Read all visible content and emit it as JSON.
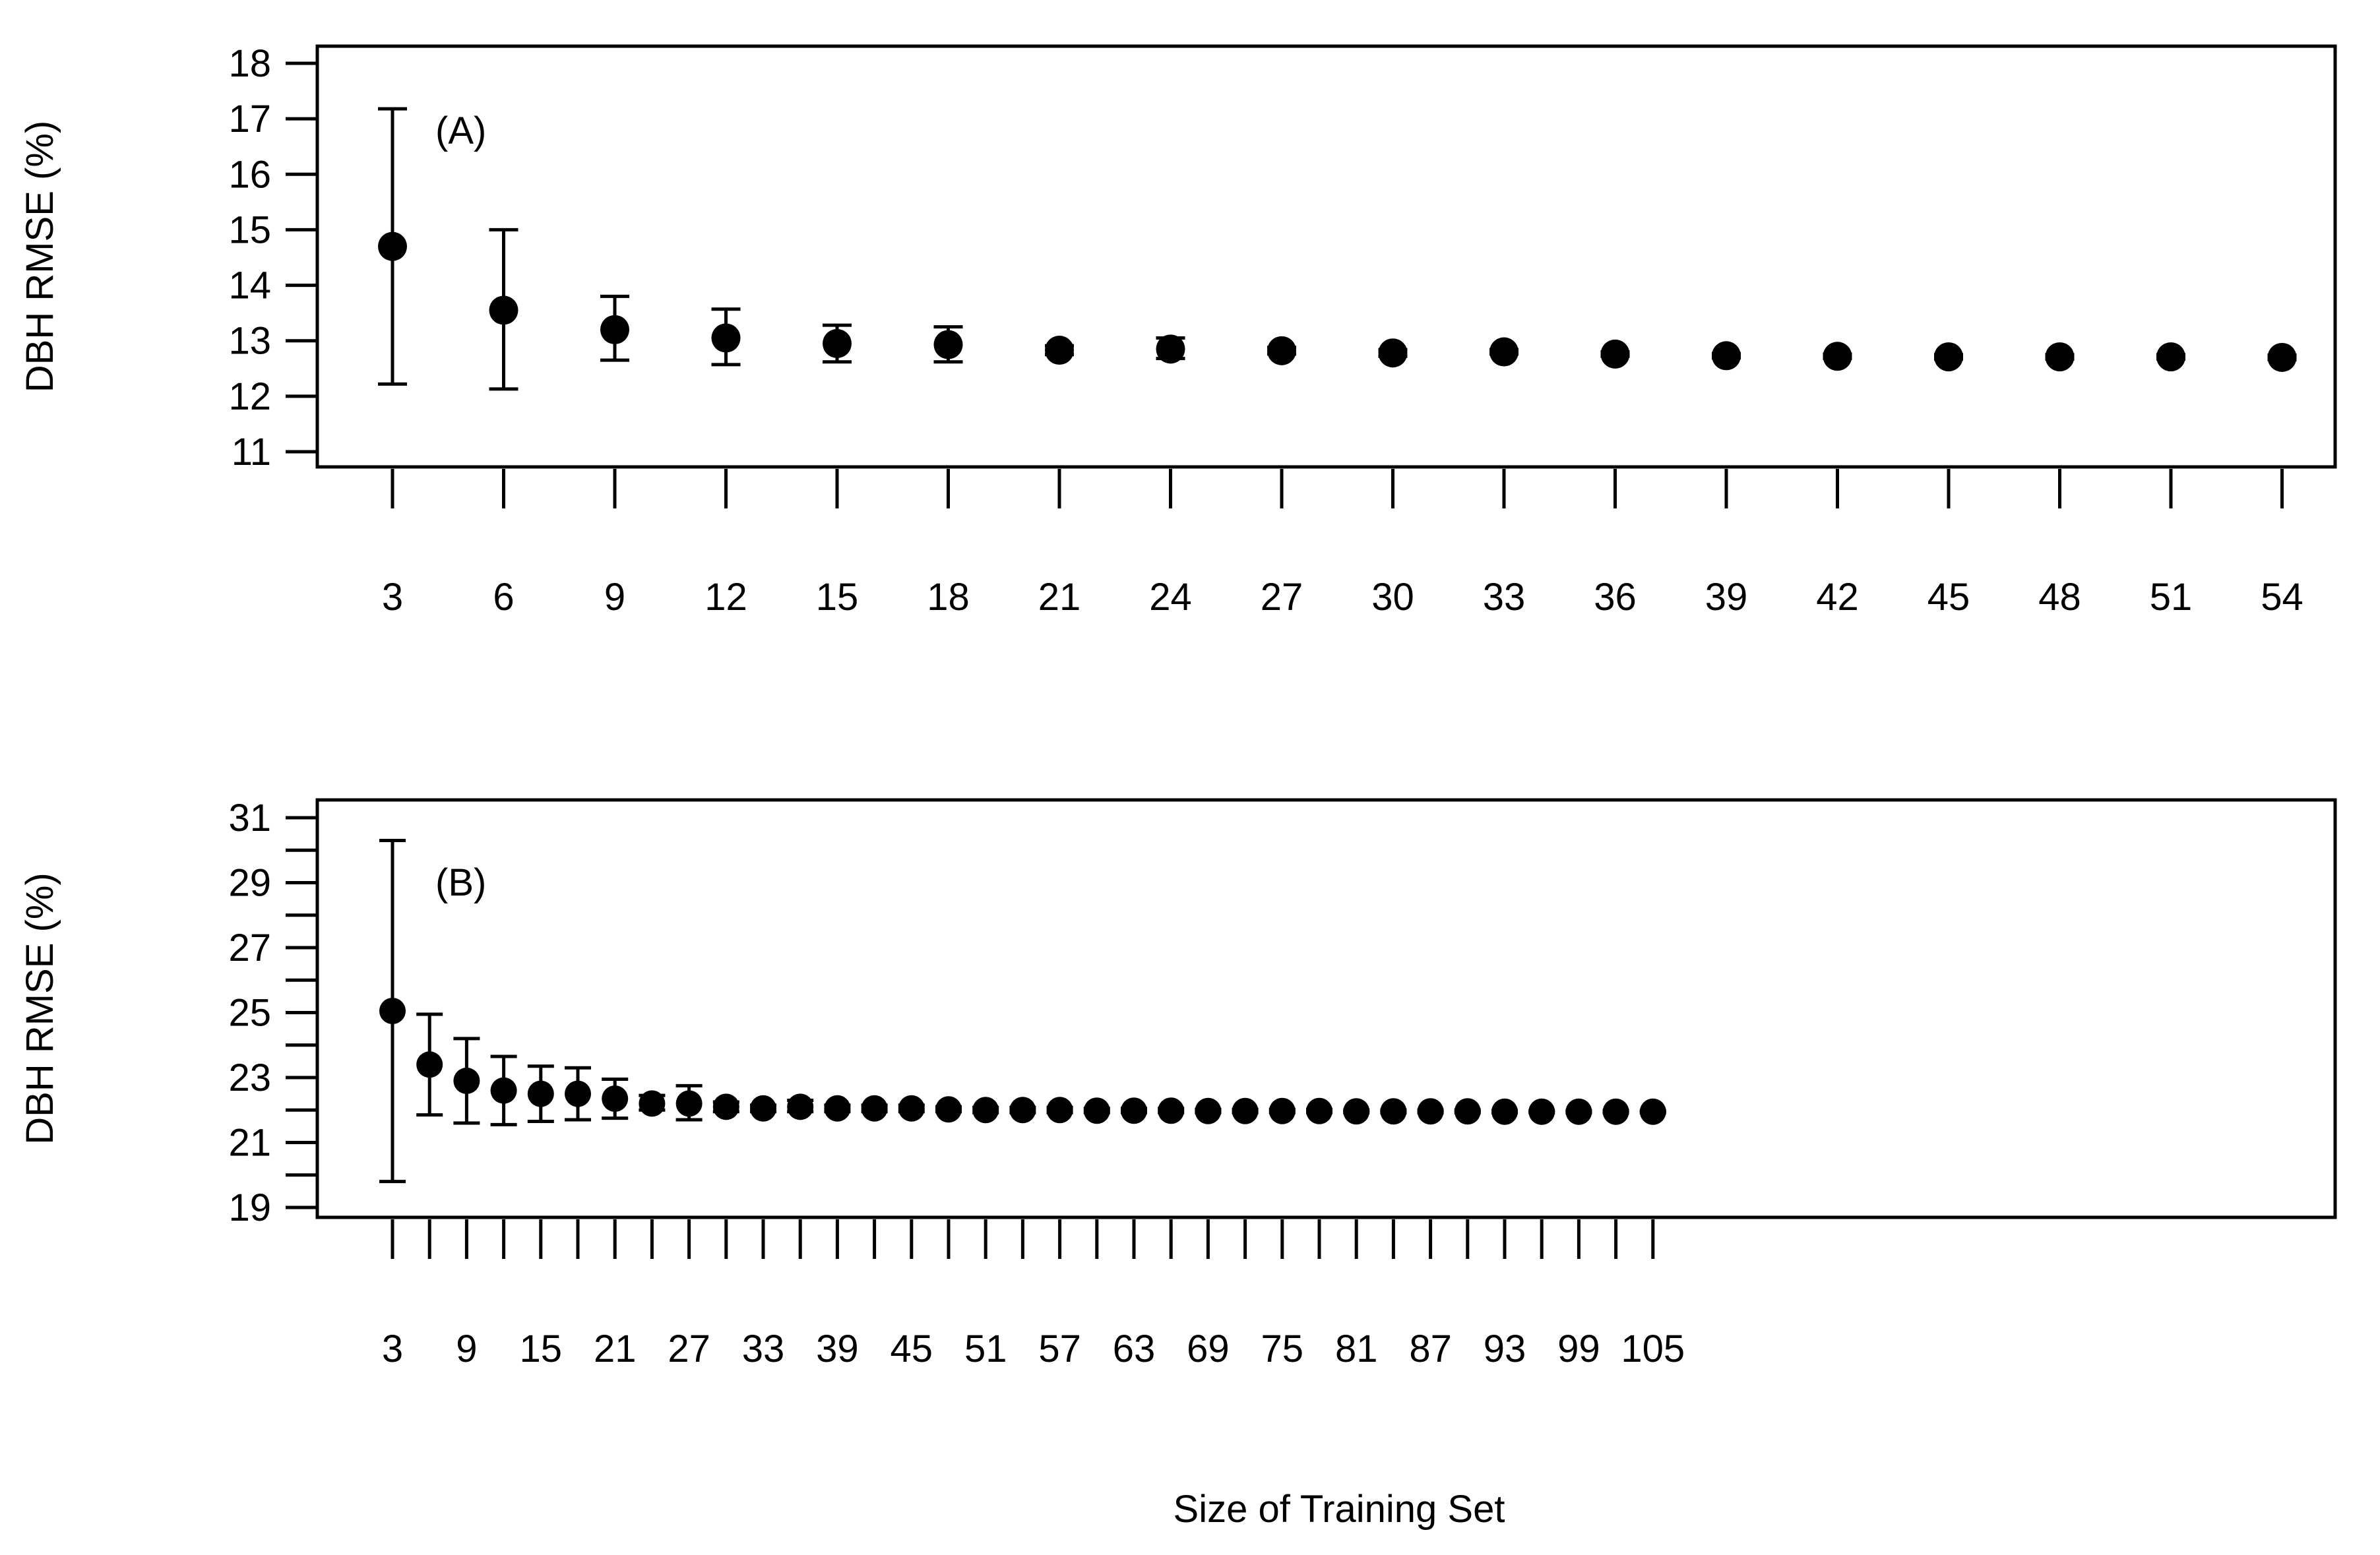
{
  "figure": {
    "xlabel": "Size of Training Set"
  },
  "chart_data": [
    {
      "type": "scatter",
      "panel_label": "(A)",
      "title": "",
      "xlabel": "",
      "ylabel": "DBH RMSE (%)",
      "ylim": [
        11,
        18
      ],
      "yticks": [
        11,
        12,
        13,
        14,
        15,
        16,
        17,
        18
      ],
      "x": [
        3,
        6,
        9,
        12,
        15,
        18,
        21,
        24,
        27,
        30,
        33,
        36,
        39,
        42,
        45,
        48,
        51,
        54
      ],
      "xtick_labels": [
        "3",
        "6",
        "9",
        "12",
        "15",
        "18",
        "21",
        "24",
        "27",
        "30",
        "33",
        "36",
        "39",
        "42",
        "45",
        "48",
        "51",
        "54"
      ],
      "values": [
        14.7,
        13.55,
        13.2,
        13.05,
        12.95,
        12.93,
        12.83,
        12.85,
        12.82,
        12.78,
        12.8,
        12.76,
        12.73,
        12.72,
        12.71,
        12.71,
        12.71,
        12.7
      ],
      "lower": [
        12.22,
        12.13,
        12.65,
        12.57,
        12.62,
        12.62,
        12.75,
        12.68,
        12.76,
        12.72,
        12.76,
        12.72,
        12.69,
        12.68,
        12.67,
        12.67,
        12.67,
        12.66
      ],
      "upper": [
        17.18,
        15.0,
        13.8,
        13.57,
        13.28,
        13.25,
        12.91,
        13.05,
        12.88,
        12.84,
        12.84,
        12.8,
        12.77,
        12.76,
        12.75,
        12.75,
        12.75,
        12.74
      ]
    },
    {
      "type": "scatter",
      "panel_label": "(B)",
      "title": "",
      "xlabel": "Size of Training Set",
      "ylabel": "DBH RMSE (%)",
      "ylim": [
        19,
        31
      ],
      "yticks": [
        19,
        21,
        23,
        25,
        27,
        29,
        31
      ],
      "x": [
        3,
        6,
        9,
        12,
        15,
        18,
        21,
        24,
        27,
        30,
        33,
        36,
        39,
        42,
        45,
        48,
        51,
        54,
        57,
        60,
        63,
        66,
        69,
        72,
        75,
        78,
        81,
        84,
        87,
        90,
        93,
        96,
        99,
        102,
        105
      ],
      "xtick_labels": [
        "3",
        "9",
        "15",
        "21",
        "27",
        "33",
        "39",
        "45",
        "51",
        "57",
        "63",
        "69",
        "75",
        "81",
        "87",
        "93",
        "99",
        "105"
      ],
      "values": [
        25.05,
        23.4,
        22.9,
        22.6,
        22.5,
        22.5,
        22.35,
        22.2,
        22.2,
        22.1,
        22.05,
        22.1,
        22.05,
        22.05,
        22.05,
        22.02,
        22.0,
        22.0,
        22.0,
        21.98,
        21.98,
        21.98,
        21.97,
        21.97,
        21.97,
        21.97,
        21.96,
        21.96,
        21.96,
        21.96,
        21.95,
        21.95,
        21.95,
        21.95,
        21.95
      ],
      "lower": [
        19.8,
        21.85,
        21.6,
        21.55,
        21.65,
        21.7,
        21.75,
        22.0,
        21.7,
        21.95,
        21.95,
        21.95,
        21.95,
        21.95,
        21.95,
        21.95,
        21.92,
        21.92,
        21.92,
        21.92,
        21.92,
        21.92,
        21.92,
        21.92,
        21.92,
        21.92,
        21.92,
        21.92,
        21.92,
        21.92,
        21.92,
        21.92,
        21.92,
        21.92,
        21.92
      ],
      "upper": [
        30.3,
        24.95,
        24.2,
        23.65,
        23.35,
        23.3,
        22.95,
        22.45,
        22.75,
        22.25,
        22.15,
        22.3,
        22.15,
        22.15,
        22.15,
        22.1,
        22.08,
        22.08,
        22.08,
        22.05,
        22.05,
        22.05,
        22.02,
        22.02,
        22.02,
        22.02,
        22.0,
        22.0,
        22.0,
        22.0,
        21.98,
        21.98,
        21.98,
        21.98,
        21.98
      ]
    }
  ]
}
